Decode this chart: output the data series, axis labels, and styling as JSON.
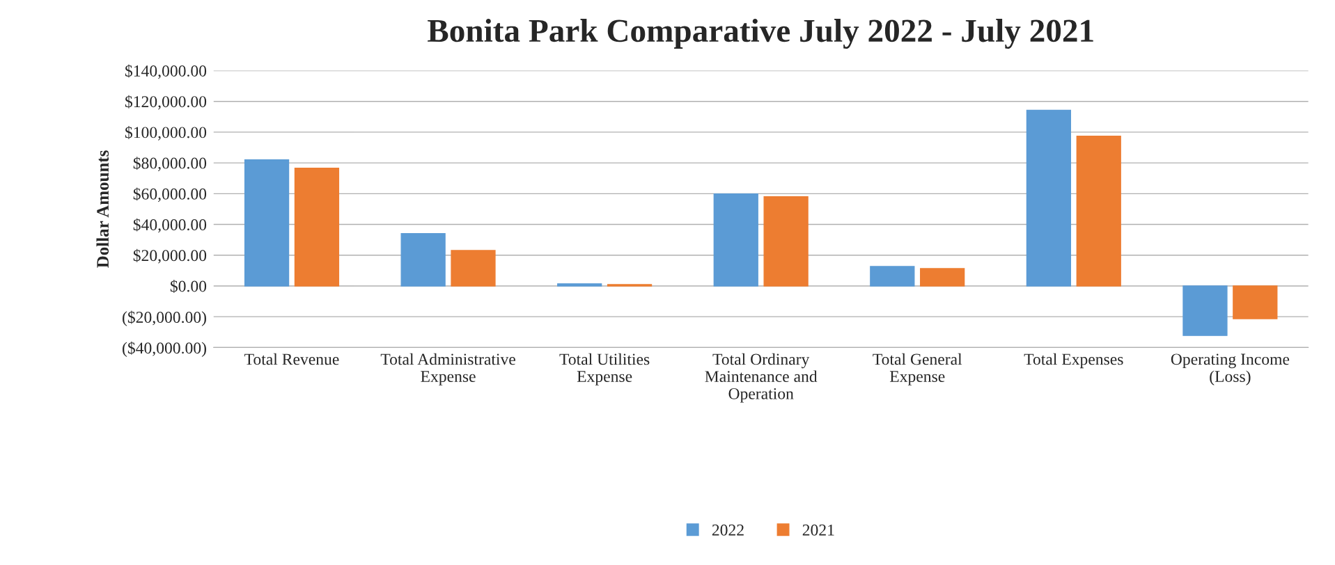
{
  "chart_data": {
    "type": "bar",
    "title": "Bonita Park Comparative July 2022 - July 2021",
    "ylabel": "Dollar Amounts",
    "categories": [
      "Total Revenue",
      "Total Administrative\nExpense",
      "Total Utilities\nExpense",
      "Total Ordinary\nMaintenance and\nOperation",
      "Total General\nExpense",
      "Total Expenses",
      "Operating Income\n(Loss)"
    ],
    "series": [
      {
        "name": "2022",
        "color": "#5b9bd5",
        "values": [
          82000,
          34000,
          1400,
          59800,
          12700,
          114200,
          -32200
        ]
      },
      {
        "name": "2021",
        "color": "#ed7d31",
        "values": [
          76600,
          23100,
          900,
          58000,
          11300,
          97400,
          -21300
        ]
      }
    ],
    "ylim": [
      -40000,
      140000
    ],
    "yticks": [
      {
        "value": -40000,
        "label": "($40,000.00)"
      },
      {
        "value": -20000,
        "label": "($20,000.00)"
      },
      {
        "value": 0,
        "label": "$0.00"
      },
      {
        "value": 20000,
        "label": "$20,000.00"
      },
      {
        "value": 40000,
        "label": "$40,000.00"
      },
      {
        "value": 60000,
        "label": "$60,000.00"
      },
      {
        "value": 80000,
        "label": "$80,000.00"
      },
      {
        "value": 100000,
        "label": "$100,000.00"
      },
      {
        "value": 120000,
        "label": "$120,000.00"
      },
      {
        "value": 140000,
        "label": "$140,000.00"
      }
    ],
    "grid": "y",
    "legend": "bottom"
  }
}
